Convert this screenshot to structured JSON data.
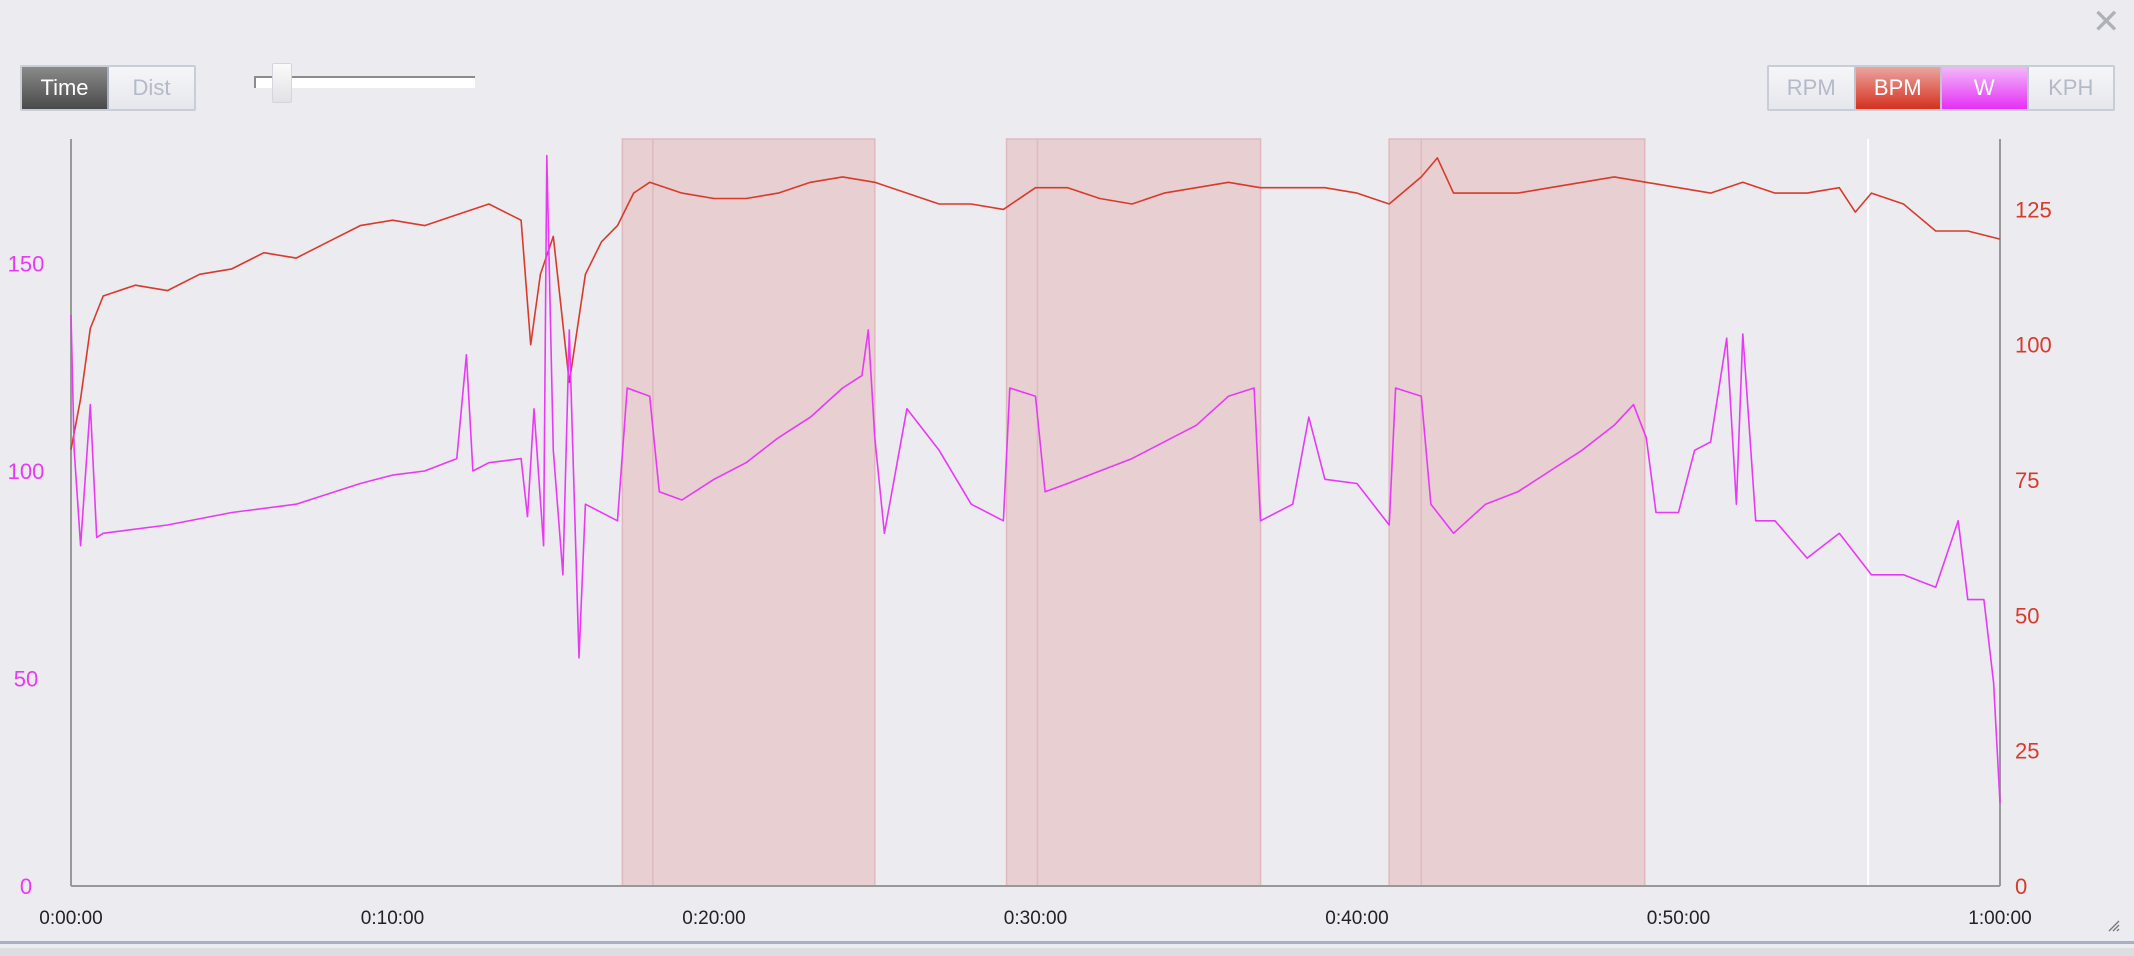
{
  "window": {
    "close_icon": "close-icon"
  },
  "toolbar": {
    "mode_buttons": [
      {
        "label": "Time",
        "active": true
      },
      {
        "label": "Dist",
        "active": false
      }
    ],
    "zoom_slider_value": 0.1,
    "unit_buttons": [
      {
        "label": "RPM",
        "active": false
      },
      {
        "label": "BPM",
        "active": true
      },
      {
        "label": "W",
        "active": true
      },
      {
        "label": "KPH",
        "active": false
      }
    ]
  },
  "chart_data": {
    "type": "line",
    "xlabel": "",
    "x_unit": "minutes",
    "xlim": [
      0,
      60
    ],
    "x_ticks": [
      {
        "v": 0,
        "label": "0:00:00"
      },
      {
        "v": 10,
        "label": "0:10:00"
      },
      {
        "v": 20,
        "label": "0:20:00"
      },
      {
        "v": 30,
        "label": "0:30:00"
      },
      {
        "v": 40,
        "label": "0:40:00"
      },
      {
        "v": 50,
        "label": "0:50:00"
      },
      {
        "v": 60,
        "label": "1:00:00"
      }
    ],
    "left_axis": {
      "series": "W",
      "ylim": [
        0,
        180
      ],
      "ticks": [
        "0",
        "50",
        "100",
        "150"
      ],
      "color": "#e83af5"
    },
    "right_axis": {
      "series": "BPM",
      "ylim": [
        0,
        138
      ],
      "ticks": [
        "0",
        "25",
        "50",
        "75",
        "100",
        "125"
      ],
      "color": "#d93a2b"
    },
    "intervals": [
      {
        "start": 17.15,
        "split": 18.1,
        "end": 25.0
      },
      {
        "start": 29.1,
        "split": 30.06,
        "end": 37.0
      },
      {
        "start": 41.0,
        "split": 42.0,
        "end": 48.95
      }
    ],
    "cursor_minute": 55.9,
    "series": [
      {
        "name": "BPM",
        "axis": "right",
        "color": "#d93a2b",
        "x": [
          0,
          0.3,
          0.6,
          1,
          2,
          3,
          4,
          5,
          6,
          7,
          8,
          9,
          10,
          11,
          12,
          13,
          14,
          14.3,
          14.6,
          15,
          15.5,
          16,
          16.5,
          17,
          17.5,
          18,
          19,
          20,
          21,
          22,
          23,
          24,
          25,
          26,
          27,
          28,
          29,
          30,
          31,
          32,
          33,
          34,
          35,
          36,
          37,
          38,
          39,
          40,
          41,
          42,
          42.5,
          43,
          44,
          45,
          46,
          47,
          48,
          49,
          50,
          51,
          52,
          53,
          54,
          55,
          55.5,
          56,
          57,
          58,
          59,
          60
        ],
        "values": [
          80.6,
          90,
          103,
          109,
          111,
          110,
          113,
          114,
          117,
          116,
          119,
          122,
          123,
          122,
          124,
          126,
          123,
          100,
          113,
          120,
          93,
          113,
          119,
          122,
          128,
          130,
          128,
          127,
          127,
          128,
          130,
          131,
          130,
          128,
          126,
          126,
          125,
          129,
          129,
          127,
          126,
          128,
          129,
          130,
          129,
          129,
          129,
          128,
          126,
          131,
          134.5,
          128,
          128,
          128,
          129,
          130,
          131,
          130,
          129,
          128,
          130,
          128,
          128,
          129,
          124.5,
          128,
          126,
          121,
          121,
          119.5
        ]
      },
      {
        "name": "W",
        "axis": "left",
        "color": "#e83af5",
        "x": [
          0,
          0.1,
          0.3,
          0.6,
          0.8,
          1,
          3,
          5,
          7,
          9,
          10,
          11,
          12,
          12.3,
          12.5,
          13,
          14,
          14.2,
          14.4,
          14.7,
          14.8,
          15,
          15.3,
          15.5,
          15.8,
          16,
          17,
          17.3,
          18,
          18.3,
          19,
          20,
          21,
          22,
          23,
          24,
          24.6,
          24.8,
          25,
          25.3,
          26,
          27,
          28,
          29,
          29.2,
          30,
          30.3,
          31,
          32,
          33,
          34,
          35,
          36,
          36.8,
          37,
          38,
          38.5,
          39,
          40,
          41,
          41.2,
          42,
          42.3,
          43,
          44,
          45,
          46,
          47,
          48,
          48.6,
          49,
          49.3,
          50,
          50.5,
          51,
          51.5,
          51.8,
          52,
          52.4,
          53,
          54,
          55,
          56,
          57,
          58,
          58.7,
          59,
          59.5,
          59.8,
          60
        ],
        "values": [
          137.6,
          105,
          82,
          116,
          84,
          85,
          87,
          90,
          92,
          97,
          99,
          100,
          103,
          128,
          100,
          102,
          103,
          89,
          115,
          82,
          176,
          105,
          75,
          134,
          55,
          92,
          88,
          120,
          118,
          95,
          93,
          98,
          102,
          108,
          113,
          120,
          123,
          134,
          108,
          85,
          115,
          105,
          92,
          88,
          120,
          118,
          95,
          97,
          100,
          103,
          107,
          111,
          118,
          120,
          88,
          92,
          113,
          98,
          97,
          87,
          120,
          118,
          92,
          85,
          92,
          95,
          100,
          105,
          111,
          116,
          108,
          90,
          90,
          105,
          107,
          132,
          92,
          133,
          88,
          88,
          79,
          85,
          75,
          75,
          72,
          88,
          69,
          69,
          49,
          20
        ]
      }
    ]
  }
}
